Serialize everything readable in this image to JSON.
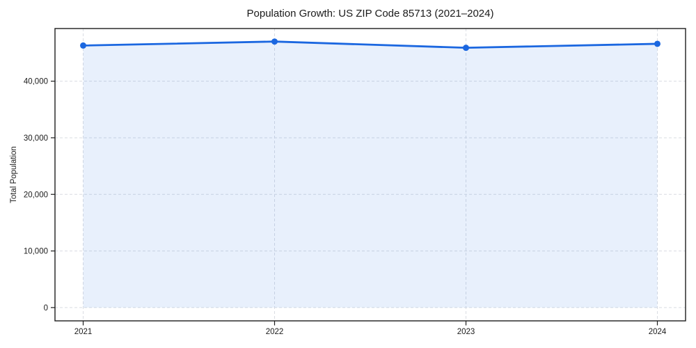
{
  "chart_data": {
    "type": "line",
    "title": "Population Growth: US ZIP Code 85713 (2021–2024)",
    "xlabel": "",
    "ylabel": "Total Population",
    "categories": [
      "2021",
      "2022",
      "2023",
      "2024"
    ],
    "series": [
      {
        "name": "Total Population",
        "values": [
          46300,
          47000,
          45900,
          46600
        ]
      }
    ],
    "yticks": [
      0,
      10000,
      20000,
      30000,
      40000
    ],
    "ylim": [
      -2350,
      49300
    ],
    "grid": true,
    "legend": false,
    "line_color": "#1b67e0",
    "marker": "circle",
    "area_fill": true,
    "fill_opacity": 0.1,
    "grid_color": "#d9dce2",
    "spine_color": "#1c1c1c"
  }
}
